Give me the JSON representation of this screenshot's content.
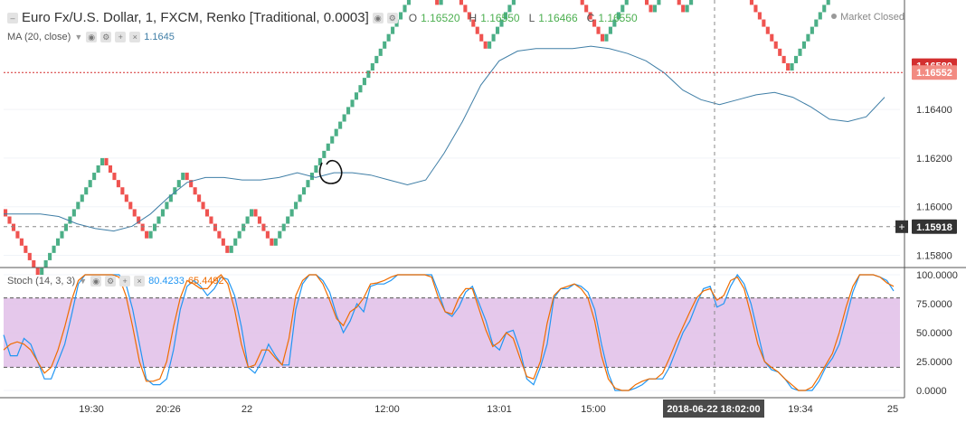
{
  "header": {
    "collapse_icon": "collapse-square-icon",
    "title": "Euro Fx/U.S. Dollar, 1, FXCM, Renko [Traditional, 0.0003]",
    "ohlc": [
      {
        "key": "O",
        "value": "1.16520"
      },
      {
        "key": "H",
        "value": "1.16550"
      },
      {
        "key": "L",
        "value": "1.16466"
      },
      {
        "key": "C",
        "value": "1.16550"
      }
    ],
    "market_status": "Market Closed"
  },
  "ma": {
    "label": "MA (20, close)",
    "value": "1.1645",
    "color": "#3f7ea6"
  },
  "stoch": {
    "label": "Stoch (14, 3, 3)",
    "k_value": "80.4233",
    "d_value": "65.4492",
    "k_color": "#2196f3",
    "d_color": "#ef6c00"
  },
  "colors": {
    "up": "#26a69a",
    "up_brick": "#4caf87",
    "down": "#ef5350",
    "band": "#e1bee7",
    "badge": "#d32f2f",
    "badge2": "#f28b82"
  },
  "chart_data": [
    {
      "type": "renko",
      "price_axis": {
        "ticks": [
          1.158,
          1.16,
          1.162,
          1.164,
          1.1658
        ],
        "tick_labels": [
          "1.15800",
          "1.16000",
          "1.16200",
          "1.16400",
          "1.16580"
        ],
        "range": [
          1.1575,
          1.1685
        ]
      },
      "time_axis": {
        "labels": [
          "19:30",
          "20:26",
          "22",
          "12:00",
          "13:01",
          "15:00",
          "19:34",
          "25"
        ],
        "crosshair_label": "2018-06-22 18:02:00"
      },
      "price_badges": [
        {
          "label": "1.16580",
          "value": 1.1658
        },
        {
          "label": "1.16552",
          "value": 1.16552
        },
        {
          "label": "1.15918",
          "value": 1.15918
        }
      ],
      "brick_size": 0.0003,
      "start_price": 1.1599,
      "bricks": "DDDDDDDDDUUUUUUUUUUUUUUUUDDDDDDDDDDDUUUUUUUUUDDDDDDDDDDDUUUUUUDDDDDUUUUUUUUUUUUUUUUUUUUUUUUUUUUUUUUUUUUUDDDDUUUDDDDDDDDDUUUUUUUUUUUUUUUDDDDDDDDDDDDDDUUUUUUUUDDDDUUUUDDDDUUUUUUUUUDDDDDDDDDDDDDDDDDUUUUUUUUUUUUUUUUUUUUUUUDD",
      "ma_series": [
        1.1597,
        1.1597,
        1.1597,
        1.1596,
        1.1593,
        1.1591,
        1.159,
        1.1592,
        1.1597,
        1.1604,
        1.161,
        1.1612,
        1.1612,
        1.1611,
        1.1611,
        1.1612,
        1.1614,
        1.1612,
        1.1614,
        1.1614,
        1.1613,
        1.1611,
        1.1609,
        1.1611,
        1.1622,
        1.1635,
        1.165,
        1.166,
        1.1664,
        1.1665,
        1.1665,
        1.1665,
        1.1666,
        1.1665,
        1.1663,
        1.166,
        1.1655,
        1.1648,
        1.1644,
        1.1642,
        1.1644,
        1.1646,
        1.1647,
        1.1645,
        1.1641,
        1.1636,
        1.1635,
        1.1637,
        1.1645
      ]
    },
    {
      "type": "line",
      "title": "Stoch (14, 3, 3)",
      "ylim": [
        0,
        100
      ],
      "y_ticks": [
        0,
        25,
        50,
        75,
        100
      ],
      "y_tick_labels": [
        "0.0000",
        "25.0000",
        "50.0000",
        "75.0000",
        "100.0000"
      ],
      "band": [
        20,
        80
      ],
      "series": [
        {
          "name": "K",
          "values": [
            48,
            30,
            30,
            45,
            40,
            25,
            10,
            10,
            25,
            40,
            65,
            92,
            100,
            100,
            100,
            100,
            100,
            100,
            92,
            70,
            40,
            10,
            5,
            5,
            10,
            35,
            70,
            90,
            95,
            90,
            82,
            88,
            98,
            96,
            82,
            55,
            20,
            15,
            25,
            40,
            30,
            22,
            22,
            70,
            92,
            100,
            100,
            95,
            85,
            65,
            50,
            60,
            75,
            68,
            90,
            92,
            92,
            95,
            100,
            100,
            100,
            100,
            100,
            100,
            85,
            68,
            64,
            72,
            85,
            90,
            75,
            60,
            40,
            35,
            50,
            52,
            35,
            10,
            5,
            20,
            40,
            80,
            88,
            88,
            92,
            90,
            85,
            70,
            40,
            15,
            0,
            0,
            0,
            2,
            5,
            10,
            10,
            10,
            20,
            35,
            50,
            60,
            75,
            88,
            90,
            72,
            75,
            90,
            100,
            92,
            75,
            50,
            25,
            18,
            16,
            10,
            2,
            0,
            0,
            0,
            8,
            20,
            28,
            40,
            62,
            85,
            100,
            100,
            100,
            98,
            95,
            86
          ]
        },
        {
          "name": "D",
          "values": [
            35,
            40,
            42,
            40,
            35,
            25,
            15,
            20,
            35,
            55,
            78,
            95,
            100,
            100,
            100,
            100,
            100,
            98,
            82,
            55,
            25,
            8,
            8,
            10,
            25,
            55,
            80,
            95,
            92,
            88,
            88,
            95,
            100,
            92,
            70,
            40,
            20,
            22,
            35,
            35,
            28,
            22,
            45,
            82,
            95,
            100,
            100,
            92,
            78,
            62,
            56,
            68,
            72,
            80,
            92,
            93,
            95,
            98,
            100,
            100,
            100,
            100,
            100,
            98,
            80,
            68,
            66,
            80,
            88,
            88,
            70,
            52,
            38,
            42,
            50,
            45,
            28,
            12,
            10,
            25,
            58,
            82,
            88,
            90,
            92,
            88,
            80,
            60,
            30,
            10,
            2,
            0,
            0,
            5,
            8,
            10,
            10,
            15,
            28,
            42,
            55,
            68,
            80,
            86,
            88,
            78,
            82,
            95,
            98,
            88,
            65,
            40,
            25,
            20,
            16,
            10,
            5,
            0,
            0,
            3,
            12,
            22,
            32,
            50,
            72,
            90,
            100,
            100,
            100,
            98,
            93,
            90
          ]
        }
      ]
    }
  ]
}
